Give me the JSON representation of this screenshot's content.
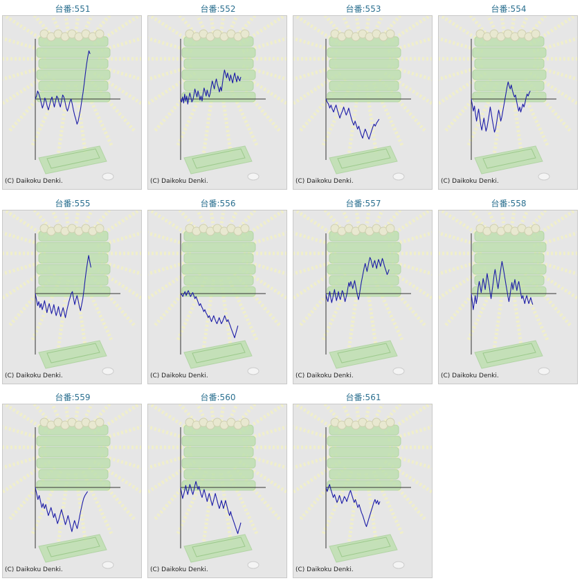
{
  "copyright": "(C) Daikoku Denki.",
  "colors": {
    "title": "#2a6f8f",
    "line": "#1a1aa6",
    "axis": "#333333",
    "panel": "#e6e6e6",
    "decor_green": "#bfe0b0",
    "decor_rays": "#f2f0c8"
  },
  "chart_data": [
    {
      "type": "line",
      "title": "台番:551",
      "values": [
        0,
        0.3,
        0.8,
        0.5,
        0.1,
        -0.4,
        -0.9,
        -0.5,
        0.1,
        -0.2,
        -0.7,
        -1.1,
        -0.6,
        -0.1,
        0.2,
        -0.3,
        -0.8,
        -0.2,
        0.3,
        0.1,
        -0.4,
        -0.8,
        -0.2,
        0.4,
        0.2,
        -0.3,
        -0.9,
        -1.2,
        -0.8,
        -0.3,
        0,
        -0.5,
        -1.1,
        -1.6,
        -2.0,
        -2.5,
        -2.2,
        -1.6,
        -1.0,
        -0.2,
        0.6,
        1.5,
        2.5,
        3.4,
        4.2,
        4.8,
        4.5
      ],
      "ylim": [
        -6,
        6
      ]
    },
    {
      "type": "line",
      "title": "台番:552",
      "values": [
        0,
        -0.3,
        0.2,
        -0.4,
        0.5,
        -0.2,
        0.3,
        -0.5,
        0.1,
        0.6,
        0.2,
        -0.3,
        -0.1,
        0.4,
        1.0,
        0.6,
        0.2,
        0.8,
        0.4,
        -0.1,
        0.3,
        -0.2,
        0.5,
        1.1,
        0.7,
        0.3,
        0.9,
        0.5,
        0.2,
        0.6,
        1.2,
        1.8,
        1.4,
        1.0,
        1.6,
        2.0,
        1.5,
        1.1,
        0.7,
        1.2,
        0.8,
        1.6,
        2.3,
        2.9,
        2.5,
        2.1,
        2.6,
        2.2,
        1.8,
        2.4,
        2.0,
        1.6,
        2.2,
        2.6,
        2.1,
        1.7,
        2.3,
        2.0,
        1.8,
        2.2
      ],
      "ylim": [
        -6,
        6
      ]
    },
    {
      "type": "line",
      "title": "台番:553",
      "values": [
        0,
        -0.3,
        -0.5,
        -0.9,
        -0.6,
        -1.0,
        -1.3,
        -0.9,
        -0.6,
        -1.1,
        -1.5,
        -1.9,
        -1.5,
        -1.2,
        -0.8,
        -1.2,
        -1.6,
        -1.3,
        -0.9,
        -1.4,
        -1.9,
        -2.3,
        -2.6,
        -2.2,
        -2.6,
        -3.0,
        -2.7,
        -3.2,
        -3.6,
        -3.9,
        -3.4,
        -3.0,
        -3.3,
        -3.7,
        -4.0,
        -3.6,
        -3.2,
        -2.8,
        -2.5,
        -2.7,
        -2.4,
        -2.2,
        -2.0
      ],
      "ylim": [
        -6,
        6
      ]
    },
    {
      "type": "line",
      "title": "台番:554",
      "values": [
        0,
        -0.6,
        -1.2,
        -0.7,
        -1.5,
        -2.2,
        -1.6,
        -1.0,
        -1.8,
        -2.6,
        -3.1,
        -2.5,
        -1.9,
        -2.6,
        -3.2,
        -2.8,
        -2.2,
        -1.5,
        -0.8,
        -1.4,
        -2.1,
        -2.7,
        -3.3,
        -3.0,
        -2.4,
        -1.7,
        -1.1,
        -1.6,
        -2.2,
        -1.8,
        -1.2,
        -0.6,
        0,
        0.6,
        1.2,
        1.7,
        1.3,
        1.0,
        1.4,
        0.9,
        0.5,
        0.2,
        0.4,
        -0.2,
        -0.7,
        -1.2,
        -0.8,
        -1.3,
        -0.9,
        -0.5,
        -0.8,
        -0.4,
        0.1,
        0.5,
        0.3,
        0.6,
        0.8
      ],
      "ylim": [
        -6,
        6
      ]
    },
    {
      "type": "line",
      "title": "台番:555",
      "values": [
        0,
        -0.6,
        -1.2,
        -0.8,
        -1.4,
        -1.0,
        -1.6,
        -1.2,
        -0.7,
        -1.3,
        -1.9,
        -1.4,
        -1.0,
        -1.5,
        -2.0,
        -1.6,
        -1.1,
        -1.7,
        -2.2,
        -1.8,
        -1.3,
        -1.9,
        -2.3,
        -1.8,
        -1.4,
        -1.9,
        -2.4,
        -1.8,
        -1.3,
        -0.8,
        -0.4,
        0,
        0.2,
        -0.5,
        -1.1,
        -0.6,
        -0.2,
        -0.7,
        -1.3,
        -1.7,
        -1.1,
        -0.5,
        0.4,
        1.4,
        2.3,
        3.1,
        3.8,
        3.2,
        2.6
      ],
      "ylim": [
        -6,
        6
      ]
    },
    {
      "type": "line",
      "title": "台番:556",
      "values": [
        0,
        -0.1,
        -0.3,
        0,
        0.2,
        -0.2,
        0.1,
        0.3,
        0,
        -0.3,
        -0.1,
        0.1,
        -0.2,
        -0.5,
        -0.3,
        -0.6,
        -0.9,
        -1.2,
        -1.0,
        -1.3,
        -1.5,
        -1.8,
        -1.6,
        -1.9,
        -2.1,
        -2.4,
        -2.2,
        -2.5,
        -2.8,
        -2.5,
        -2.2,
        -2.5,
        -2.8,
        -3.0,
        -2.7,
        -2.4,
        -2.7,
        -3.0,
        -2.8,
        -2.5,
        -2.2,
        -2.5,
        -2.8,
        -2.6,
        -2.9,
        -3.2,
        -3.5,
        -3.8,
        -4.1,
        -4.4,
        -4.0,
        -3.6,
        -3.2
      ],
      "ylim": [
        -6,
        6
      ]
    },
    {
      "type": "line",
      "title": "台番:557",
      "values": [
        0,
        -0.5,
        -0.8,
        -0.3,
        0.2,
        -0.4,
        -0.9,
        -0.5,
        0,
        0.4,
        -0.2,
        -0.7,
        -0.3,
        0.2,
        -0.3,
        -0.6,
        -0.2,
        0.3,
        0.1,
        -0.4,
        -0.8,
        -0.4,
        0,
        0.6,
        1.1,
        0.7,
        1.2,
        0.9,
        0.5,
        0.9,
        1.3,
        0.8,
        0.3,
        -0.2,
        -0.6,
        -0.1,
        0.5,
        1.1,
        1.6,
        2.1,
        2.6,
        3.0,
        2.6,
        2.2,
        2.7,
        3.2,
        3.6,
        3.4,
        3.0,
        2.6,
        3.0,
        3.3,
        2.9,
        2.5,
        3.0,
        3.4,
        3.1,
        2.7,
        3.1,
        3.5,
        3.2,
        2.8,
        2.5,
        2.2,
        1.9,
        2.1,
        2.4
      ],
      "ylim": [
        -6,
        6
      ]
    },
    {
      "type": "line",
      "title": "台番:558",
      "values": [
        0,
        -0.8,
        -1.6,
        -0.9,
        -0.2,
        -1.0,
        -0.4,
        0.6,
        1.2,
        0.7,
        0.1,
        0.8,
        1.5,
        1.0,
        0.4,
        1.2,
        2.0,
        1.4,
        0.8,
        0.1,
        -0.5,
        0.3,
        1.0,
        1.8,
        2.4,
        1.8,
        1.1,
        0.5,
        1.2,
        1.9,
        2.6,
        3.2,
        2.7,
        2.1,
        1.5,
        0.9,
        0.3,
        -0.3,
        -0.8,
        -0.2,
        0.5,
        1.1,
        0.4,
        0.9,
        1.4,
        0.8,
        0.3,
        0.9,
        1.2,
        0.6,
        0,
        -0.5,
        -0.2,
        -0.6,
        -1.0,
        -0.5,
        -0.2,
        -0.6,
        -1.0,
        -0.7,
        -0.4,
        -0.8,
        -1.1
      ],
      "ylim": [
        -6,
        6
      ]
    },
    {
      "type": "line",
      "title": "台番:559",
      "values": [
        0,
        -0.6,
        -1.2,
        -0.8,
        -1.4,
        -2.0,
        -1.6,
        -2.1,
        -1.7,
        -2.3,
        -2.8,
        -2.4,
        -2.0,
        -2.5,
        -3.0,
        -2.6,
        -3.1,
        -3.6,
        -3.2,
        -2.7,
        -2.2,
        -2.7,
        -3.2,
        -3.7,
        -3.3,
        -2.8,
        -3.3,
        -3.9,
        -4.4,
        -3.8,
        -3.3,
        -3.7,
        -4.1,
        -3.5,
        -2.8,
        -2.2,
        -1.6,
        -1.1,
        -0.8,
        -0.6,
        -0.4
      ],
      "ylim": [
        -6,
        6
      ]
    },
    {
      "type": "line",
      "title": "台番:560",
      "values": [
        0,
        -0.6,
        -1.1,
        -0.7,
        -0.3,
        0.2,
        -0.3,
        -0.7,
        -0.2,
        0.3,
        0,
        -0.4,
        -0.7,
        -0.3,
        0.2,
        0.6,
        0.2,
        -0.2,
        0.1,
        -0.3,
        -0.7,
        -1.0,
        -0.6,
        -0.2,
        -0.6,
        -1.0,
        -1.4,
        -1.0,
        -0.6,
        -1.0,
        -1.4,
        -1.8,
        -1.4,
        -1.0,
        -0.6,
        -1.0,
        -1.4,
        -1.8,
        -2.1,
        -1.7,
        -1.3,
        -1.7,
        -2.1,
        -1.7,
        -1.3,
        -1.7,
        -2.1,
        -2.5,
        -2.8,
        -2.4,
        -2.8,
        -3.1,
        -3.4,
        -3.7,
        -4.0,
        -4.3,
        -4.6,
        -4.2,
        -3.9,
        -3.5
      ],
      "ylim": [
        -6,
        6
      ]
    },
    {
      "type": "line",
      "title": "台番:561",
      "values": [
        0,
        -0.4,
        0,
        0.3,
        -0.2,
        -0.6,
        -1.0,
        -0.7,
        -1.1,
        -1.5,
        -1.2,
        -0.8,
        -1.2,
        -1.6,
        -1.3,
        -0.9,
        -1.1,
        -1.4,
        -1.0,
        -0.6,
        -0.3,
        -0.7,
        -1.1,
        -1.5,
        -1.2,
        -1.6,
        -2.0,
        -1.7,
        -2.1,
        -2.5,
        -2.8,
        -3.2,
        -3.6,
        -3.9,
        -3.5,
        -3.1,
        -2.7,
        -2.3,
        -1.9,
        -1.5,
        -1.2,
        -1.6,
        -1.3,
        -1.7,
        -1.4
      ],
      "ylim": [
        -6,
        6
      ]
    }
  ]
}
